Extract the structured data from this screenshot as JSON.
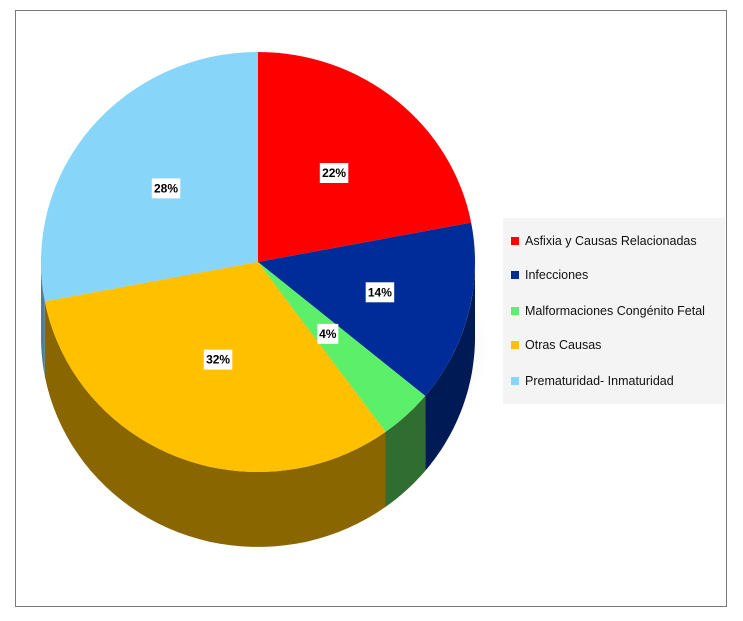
{
  "chart_data": {
    "type": "pie",
    "title": "",
    "categories": [
      "Asfixia y Causas Relacionadas",
      "Infecciones",
      "Malformaciones Congénito Fetal",
      "Otras Causas",
      "Prematuridad- Inmaturidad"
    ],
    "values": [
      22,
      14,
      4,
      32,
      28
    ],
    "labels": [
      "22%",
      "14%",
      "4%",
      "32%",
      "28%"
    ],
    "colors": [
      "#ff0000",
      "#002c99",
      "#5cf06a",
      "#ffc000",
      "#87d5f8"
    ],
    "side_colors": [
      "#7a0000",
      "#001a55",
      "#2f6e30",
      "#8a6600",
      "#4a7f95"
    ],
    "legend_position": "right",
    "style": "3d"
  }
}
